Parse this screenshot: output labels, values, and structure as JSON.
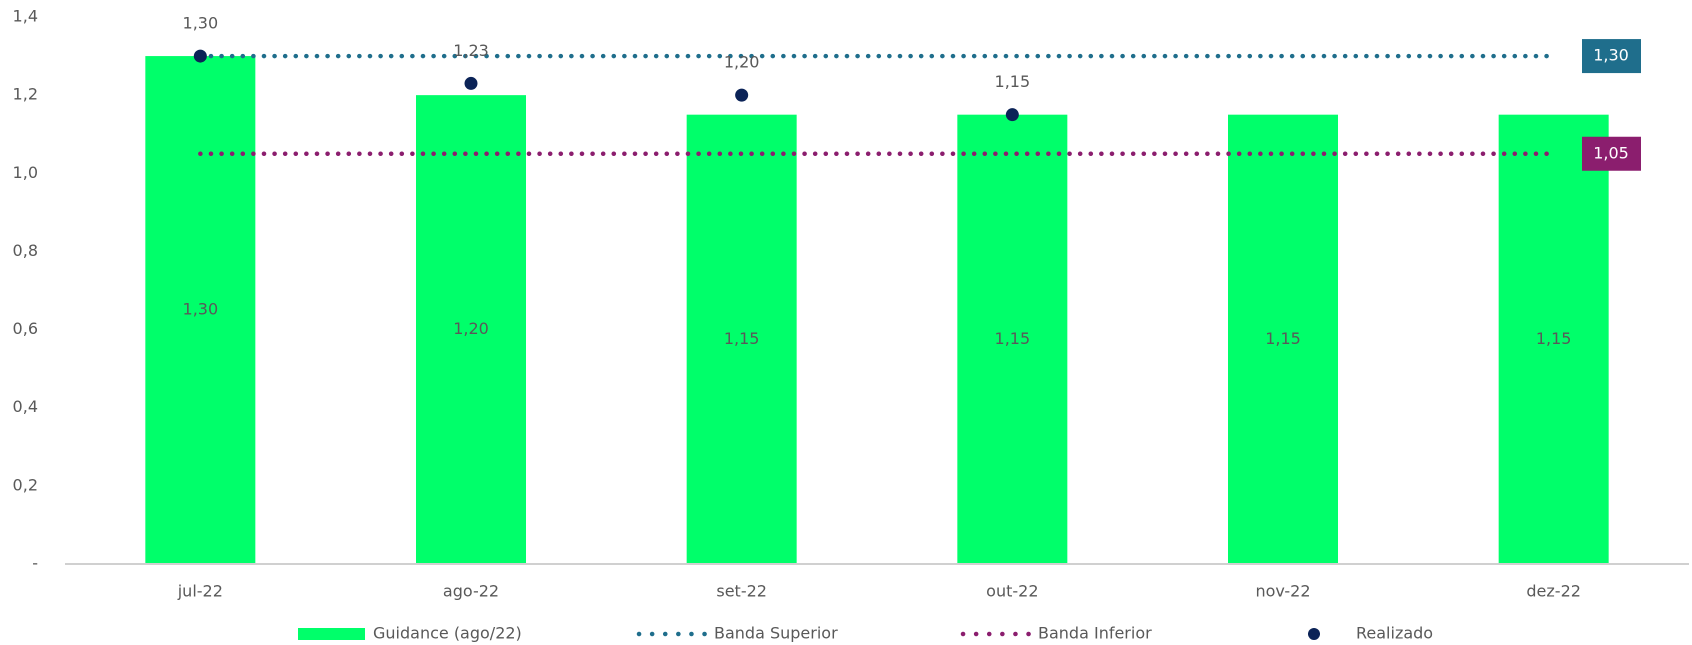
{
  "chart_data": {
    "type": "bar",
    "categories": [
      "jul-22",
      "ago-22",
      "set-22",
      "out-22",
      "nov-22",
      "dez-22"
    ],
    "ylim": [
      0,
      1.4
    ],
    "yticks": [
      {
        "value": 0,
        "label": "-"
      },
      {
        "value": 0.2,
        "label": "0,2"
      },
      {
        "value": 0.4,
        "label": "0,4"
      },
      {
        "value": 0.6,
        "label": "0,6"
      },
      {
        "value": 0.8,
        "label": "0,8"
      },
      {
        "value": 1.0,
        "label": "1,0"
      },
      {
        "value": 1.2,
        "label": "1,2"
      },
      {
        "value": 1.4,
        "label": "1,4"
      }
    ],
    "series": [
      {
        "name": "Guidance (ago/22)",
        "type": "bar",
        "color": "#00ff6a",
        "values": [
          1.3,
          1.2,
          1.15,
          1.15,
          1.15,
          1.15
        ],
        "value_labels": [
          "1,30",
          "1,20",
          "1,15",
          "1,15",
          "1,15",
          "1,15"
        ]
      },
      {
        "name": "Banda Superior",
        "type": "line",
        "color": "#1f6e8c",
        "values": [
          1.3,
          1.3,
          1.3,
          1.3,
          1.3,
          1.3
        ],
        "value_labels": [
          null,
          null,
          null,
          null,
          null,
          "1,30"
        ]
      },
      {
        "name": "Banda Inferior",
        "type": "line",
        "color": "#8b1e6e",
        "values": [
          1.05,
          1.05,
          1.05,
          1.05,
          1.05,
          1.05
        ],
        "value_labels": [
          null,
          null,
          null,
          null,
          null,
          "1,05"
        ]
      },
      {
        "name": "Realizado",
        "type": "scatter",
        "color": "#0b2357",
        "values": [
          1.3,
          1.23,
          1.2,
          1.15,
          null,
          null
        ],
        "value_labels": [
          "1,30",
          "1,23",
          "1,20",
          "1,15",
          null,
          null
        ]
      }
    ]
  }
}
